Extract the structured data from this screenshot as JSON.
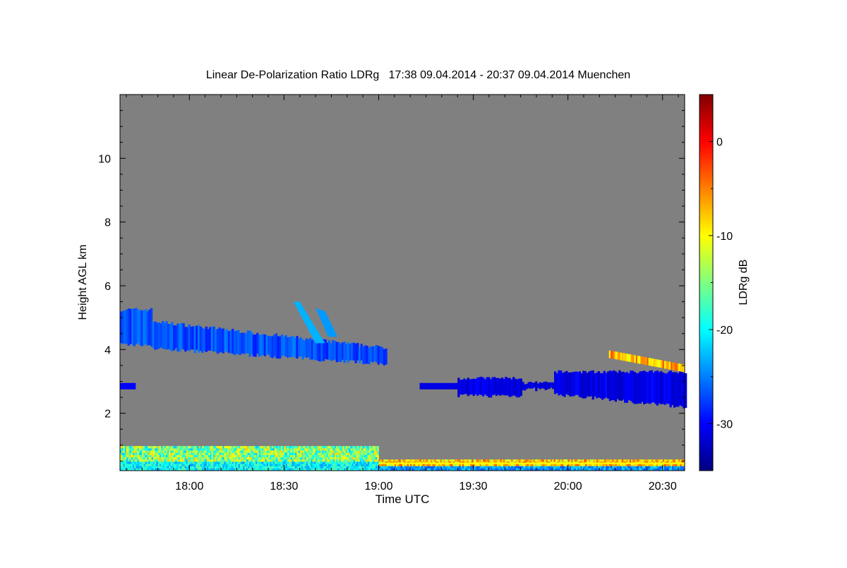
{
  "chart_data": {
    "type": "heatmap",
    "title": "Linear De-Polarization Ratio LDRg   17:38 09.04.2014 - 20:37 09.04.2014 Muenchen",
    "xlabel": "Time UTC",
    "ylabel": "Height AGL km",
    "x_range_utc": [
      "17:38",
      "20:37"
    ],
    "x_ticks": [
      "18:00",
      "18:30",
      "19:00",
      "19:30",
      "20:00",
      "20:30"
    ],
    "ylim_km": [
      0.2,
      12.0
    ],
    "y_ticks": [
      2,
      4,
      6,
      8,
      10
    ],
    "colorbar": {
      "label": "LDRg dB",
      "range_db": [
        -35,
        5
      ],
      "ticks": [
        0,
        -10,
        -20,
        -30
      ],
      "colormap": [
        "#00007f",
        "#0000ff",
        "#007fff",
        "#00ffff",
        "#7fff7f",
        "#ffff00",
        "#ff7f00",
        "#ff0000",
        "#7f0000"
      ]
    },
    "background_color": "#808080",
    "features": [
      {
        "name": "upper cloud layer",
        "time": [
          "17:38",
          "19:02"
        ],
        "height_km": [
          3.6,
          5.6
        ],
        "ldr_db": -27
      },
      {
        "name": "mid cloud layer",
        "time": [
          "19:25",
          "20:37"
        ],
        "height_km": [
          2.1,
          3.3
        ],
        "ldr_db": -31
      },
      {
        "name": "high depolarization streak",
        "time": [
          "20:13",
          "20:37"
        ],
        "height_km": [
          3.3,
          4.0
        ],
        "ldr_db": -7
      },
      {
        "name": "boundary layer aerosol",
        "time": [
          "17:38",
          "19:00"
        ],
        "height_km": [
          0.2,
          1.0
        ],
        "ldr_db": -15
      }
    ]
  }
}
